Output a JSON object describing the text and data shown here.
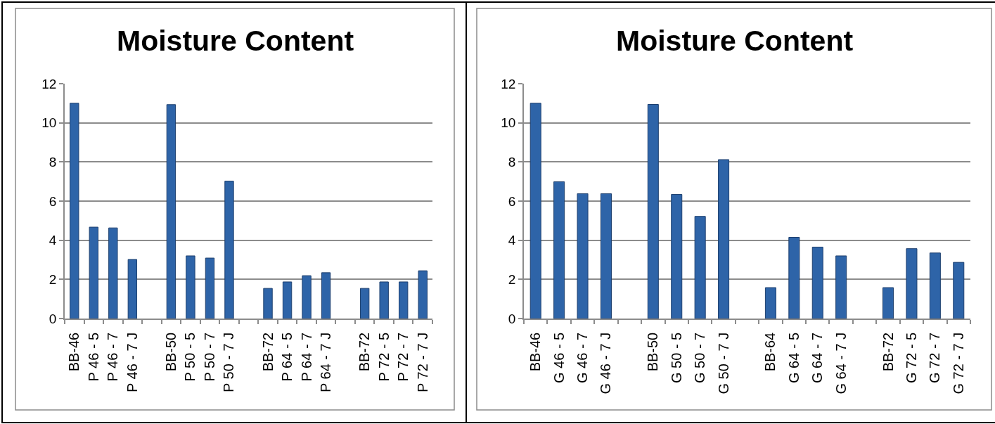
{
  "chart_data": [
    {
      "type": "bar",
      "title": "Moisture Content",
      "categories": [
        "BB-46",
        "P 46 - 5",
        "P 46 - 7",
        "P 46 - 7 J",
        null,
        "BB-50",
        "P 50 - 5",
        "P 50 - 7",
        "P 50 - 7 J",
        null,
        "BB-72",
        "P 64 - 5",
        "P 64 - 7",
        "P 64 - 7 J",
        null,
        "BB-72",
        "P 72 - 5",
        "P 72 - 7",
        "P 72 - 7 J"
      ],
      "values": [
        11.0,
        4.67,
        4.63,
        3.02,
        null,
        10.93,
        3.2,
        3.09,
        7.02,
        null,
        1.54,
        1.87,
        2.19,
        2.34,
        null,
        1.54,
        1.87,
        1.87,
        2.44
      ],
      "color": "#2e64a8",
      "ylim": [
        0,
        12
      ],
      "yticks": [
        0,
        2,
        4,
        6,
        8,
        10,
        12
      ],
      "grid": "y"
    },
    {
      "type": "bar",
      "title": "Moisture Content",
      "categories": [
        "BB-46",
        "G 46 - 5",
        "G 46 - 7",
        "G 46 - 7 J",
        null,
        "BB-50",
        "G 50 - 5",
        "G 50 - 7",
        "G 50 - 7 J",
        null,
        "BB-64",
        "G 64 - 5",
        "G 64 - 7",
        "G 64 - 7 J",
        null,
        "BB-72",
        "G 72 - 5",
        "G 72 - 7",
        "G 72 - 7 J"
      ],
      "values": [
        11.0,
        6.99,
        6.38,
        6.38,
        null,
        10.94,
        6.34,
        5.22,
        8.12,
        null,
        1.58,
        4.15,
        3.65,
        3.2,
        null,
        1.58,
        3.57,
        3.35,
        2.87
      ],
      "color": "#2e64a8",
      "ylim": [
        0,
        12
      ],
      "yticks": [
        0,
        2,
        4,
        6,
        8,
        10,
        12
      ],
      "grid": "y"
    }
  ]
}
